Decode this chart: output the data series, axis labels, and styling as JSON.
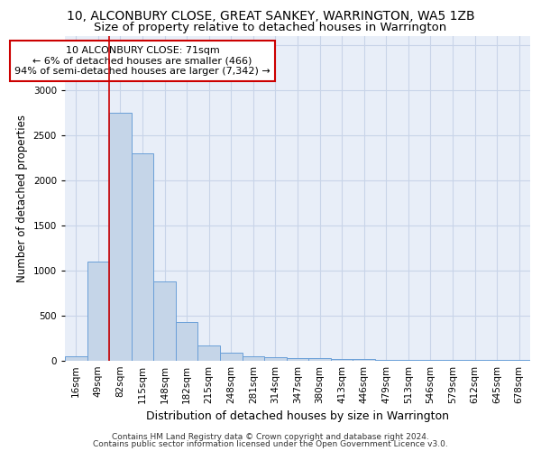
{
  "title1": "10, ALCONBURY CLOSE, GREAT SANKEY, WARRINGTON, WA5 1ZB",
  "title2": "Size of property relative to detached houses in Warrington",
  "xlabel": "Distribution of detached houses by size in Warrington",
  "ylabel": "Number of detached properties",
  "bin_labels": [
    "16sqm",
    "49sqm",
    "82sqm",
    "115sqm",
    "148sqm",
    "182sqm",
    "215sqm",
    "248sqm",
    "281sqm",
    "314sqm",
    "347sqm",
    "380sqm",
    "413sqm",
    "446sqm",
    "479sqm",
    "513sqm",
    "546sqm",
    "579sqm",
    "612sqm",
    "645sqm",
    "678sqm"
  ],
  "bar_heights": [
    55,
    1100,
    2750,
    2300,
    880,
    430,
    170,
    90,
    55,
    45,
    35,
    30,
    25,
    20,
    15,
    15,
    12,
    10,
    10,
    10,
    10
  ],
  "bar_color": "#c5d5e8",
  "bar_edge_color": "#6a9fd8",
  "grid_color": "#c8d4e8",
  "background_color": "#e8eef8",
  "vline_x": 2.0,
  "vline_color": "#cc0000",
  "annotation_text": "10 ALCONBURY CLOSE: 71sqm\n← 6% of detached houses are smaller (466)\n94% of semi-detached houses are larger (7,342) →",
  "annotation_box_color": "#ffffff",
  "annotation_box_edge": "#cc0000",
  "footer1": "Contains HM Land Registry data © Crown copyright and database right 2024.",
  "footer2": "Contains public sector information licensed under the Open Government Licence v3.0.",
  "ylim": [
    0,
    3600
  ],
  "title1_fontsize": 10,
  "title2_fontsize": 9.5,
  "xlabel_fontsize": 9,
  "ylabel_fontsize": 8.5,
  "tick_fontsize": 7.5,
  "annotation_fontsize": 8,
  "footer_fontsize": 6.5
}
